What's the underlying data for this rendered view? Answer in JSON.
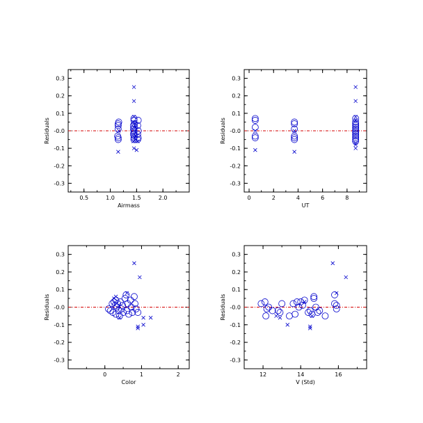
{
  "chart_data": [
    {
      "type": "scatter",
      "xlabel": "Airmass",
      "ylabel": "Residuals",
      "xlim": [
        0.2,
        2.5
      ],
      "ylim": [
        -0.35,
        0.35
      ],
      "xticks": [
        0.5,
        1.0,
        1.5,
        2.0
      ],
      "xticklabels": [
        "0.5",
        "1.0",
        "1.5",
        "2.0"
      ],
      "yticks": [
        -0.3,
        -0.2,
        -0.1,
        0.0,
        0.1,
        0.2,
        0.3
      ],
      "yticklabels": [
        "-0.3",
        "-0.2",
        "-0.1",
        "-0.0",
        "0.1",
        "0.2",
        "0.3"
      ],
      "reference_line": {
        "y": 0.0,
        "color": "#d40000"
      },
      "series": [
        {
          "marker": "circle",
          "color": "#0000cc",
          "points": [
            [
              1.15,
              0.04
            ],
            [
              1.15,
              0.03
            ],
            [
              1.15,
              0.01
            ],
            [
              1.15,
              -0.04
            ],
            [
              1.15,
              -0.05
            ],
            [
              1.16,
              0.05
            ],
            [
              1.14,
              -0.03
            ],
            [
              1.45,
              0.07
            ],
            [
              1.45,
              0.06
            ],
            [
              1.44,
              0.03
            ],
            [
              1.46,
              0.02
            ],
            [
              1.45,
              0.0
            ],
            [
              1.45,
              -0.01
            ],
            [
              1.44,
              -0.02
            ],
            [
              1.46,
              -0.03
            ],
            [
              1.45,
              -0.04
            ],
            [
              1.45,
              -0.05
            ],
            [
              1.44,
              0.01
            ],
            [
              1.46,
              0.04
            ],
            [
              1.53,
              0.06
            ],
            [
              1.52,
              0.03
            ],
            [
              1.53,
              0.0
            ],
            [
              1.52,
              -0.02
            ],
            [
              1.53,
              -0.04
            ],
            [
              1.52,
              -0.05
            ]
          ]
        },
        {
          "marker": "cross",
          "color": "#0000cc",
          "points": [
            [
              1.15,
              -0.12
            ],
            [
              1.16,
              0.0
            ],
            [
              1.45,
              0.25
            ],
            [
              1.45,
              0.17
            ],
            [
              1.45,
              0.08
            ],
            [
              1.44,
              -0.06
            ],
            [
              1.45,
              -0.1
            ],
            [
              1.5,
              -0.11
            ],
            [
              1.46,
              -0.04
            ],
            [
              1.44,
              0.05
            ],
            [
              1.47,
              0.03
            ],
            [
              1.52,
              -0.06
            ]
          ]
        }
      ]
    },
    {
      "type": "scatter",
      "xlabel": "UT",
      "ylabel": "Residuals",
      "xlim": [
        -0.4,
        9.6
      ],
      "ylim": [
        -0.35,
        0.35
      ],
      "xticks": [
        0,
        2,
        4,
        6,
        8
      ],
      "xticklabels": [
        "0",
        "2",
        "4",
        "6",
        "8"
      ],
      "yticks": [
        -0.3,
        -0.2,
        -0.1,
        0.0,
        0.1,
        0.2,
        0.3
      ],
      "yticklabels": [
        "-0.3",
        "-0.2",
        "-0.1",
        "-0.0",
        "0.1",
        "0.2",
        "0.3"
      ],
      "reference_line": {
        "y": 0.0,
        "color": "#d40000"
      },
      "series": [
        {
          "marker": "circle",
          "color": "#0000cc",
          "points": [
            [
              0.5,
              0.07
            ],
            [
              0.5,
              0.06
            ],
            [
              0.5,
              0.02
            ],
            [
              0.5,
              -0.03
            ],
            [
              0.5,
              -0.04
            ],
            [
              3.7,
              0.05
            ],
            [
              3.7,
              0.04
            ],
            [
              3.7,
              0.01
            ],
            [
              3.7,
              -0.03
            ],
            [
              3.7,
              -0.04
            ],
            [
              3.7,
              -0.05
            ],
            [
              8.7,
              0.07
            ],
            [
              8.7,
              0.05
            ],
            [
              8.7,
              0.04
            ],
            [
              8.7,
              0.02
            ],
            [
              8.7,
              0.01
            ],
            [
              8.7,
              0.0
            ],
            [
              8.7,
              -0.01
            ],
            [
              8.7,
              -0.02
            ],
            [
              8.7,
              -0.03
            ],
            [
              8.7,
              -0.04
            ],
            [
              8.7,
              -0.05
            ],
            [
              8.7,
              0.03
            ],
            [
              8.7,
              -0.06
            ]
          ]
        },
        {
          "marker": "cross",
          "color": "#0000cc",
          "points": [
            [
              0.5,
              -0.11
            ],
            [
              0.5,
              0.0
            ],
            [
              3.7,
              -0.12
            ],
            [
              3.7,
              0.0
            ],
            [
              8.7,
              0.25
            ],
            [
              8.7,
              0.17
            ],
            [
              8.7,
              0.08
            ],
            [
              8.7,
              -0.1
            ],
            [
              8.7,
              -0.08
            ],
            [
              8.7,
              0.06
            ],
            [
              8.7,
              -0.07
            ]
          ]
        }
      ]
    },
    {
      "type": "scatter",
      "xlabel": "Color",
      "ylabel": "Residuals",
      "xlim": [
        -1.0,
        2.3
      ],
      "ylim": [
        -0.35,
        0.35
      ],
      "xticks": [
        0,
        1,
        2
      ],
      "xticklabels": [
        "0",
        "1",
        "2"
      ],
      "yticks": [
        -0.3,
        -0.2,
        -0.1,
        0.0,
        0.1,
        0.2,
        0.3
      ],
      "yticklabels": [
        "-0.3",
        "-0.2",
        "-0.1",
        "-0.0",
        "0.1",
        "0.2",
        "0.3"
      ],
      "reference_line": {
        "y": 0.0,
        "color": "#d40000"
      },
      "series": [
        {
          "marker": "circle",
          "color": "#0000cc",
          "points": [
            [
              0.1,
              -0.01
            ],
            [
              0.15,
              -0.02
            ],
            [
              0.2,
              0.02
            ],
            [
              0.22,
              -0.03
            ],
            [
              0.25,
              0.03
            ],
            [
              0.28,
              0.01
            ],
            [
              0.3,
              -0.04
            ],
            [
              0.32,
              0.0
            ],
            [
              0.35,
              0.02
            ],
            [
              0.38,
              -0.02
            ],
            [
              0.4,
              -0.05
            ],
            [
              0.42,
              0.03
            ],
            [
              0.45,
              -0.01
            ],
            [
              0.48,
              0.01
            ],
            [
              0.5,
              -0.03
            ],
            [
              0.55,
              0.05
            ],
            [
              0.58,
              0.07
            ],
            [
              0.6,
              -0.02
            ],
            [
              0.62,
              0.02
            ],
            [
              0.65,
              -0.04
            ],
            [
              0.7,
              0.04
            ],
            [
              0.72,
              0.0
            ],
            [
              0.75,
              -0.03
            ],
            [
              0.8,
              0.06
            ],
            [
              0.82,
              0.02
            ],
            [
              0.85,
              -0.01
            ],
            [
              0.9,
              -0.03
            ],
            [
              0.3,
              0.04
            ]
          ]
        },
        {
          "marker": "cross",
          "color": "#0000cc",
          "points": [
            [
              0.8,
              0.25
            ],
            [
              0.95,
              0.17
            ],
            [
              0.9,
              -0.12
            ],
            [
              0.9,
              -0.11
            ],
            [
              1.05,
              -0.1
            ],
            [
              1.05,
              -0.06
            ],
            [
              1.25,
              -0.06
            ],
            [
              0.25,
              0.05
            ],
            [
              0.3,
              0.06
            ],
            [
              0.6,
              0.08
            ],
            [
              0.4,
              -0.06
            ]
          ]
        }
      ]
    },
    {
      "type": "scatter",
      "xlabel": "V (Std)",
      "ylabel": "Residuals",
      "xlim": [
        11.0,
        17.5
      ],
      "ylim": [
        -0.35,
        0.35
      ],
      "xticks": [
        12,
        14,
        16
      ],
      "xticklabels": [
        "12",
        "14",
        "16"
      ],
      "yticks": [
        -0.3,
        -0.2,
        -0.1,
        0.0,
        0.1,
        0.2,
        0.3
      ],
      "yticklabels": [
        "-0.3",
        "-0.2",
        "-0.1",
        "-0.0",
        "0.1",
        "0.2",
        "0.3"
      ],
      "reference_line": {
        "y": 0.0,
        "color": "#d40000"
      },
      "series": [
        {
          "marker": "circle",
          "color": "#0000cc",
          "points": [
            [
              11.9,
              0.02
            ],
            [
              12.1,
              0.03
            ],
            [
              12.2,
              -0.01
            ],
            [
              12.15,
              -0.05
            ],
            [
              12.3,
              0.0
            ],
            [
              12.5,
              -0.02
            ],
            [
              12.8,
              -0.02
            ],
            [
              12.9,
              -0.03
            ],
            [
              13.0,
              0.02
            ],
            [
              13.4,
              -0.05
            ],
            [
              13.6,
              0.02
            ],
            [
              13.7,
              -0.04
            ],
            [
              13.8,
              0.03
            ],
            [
              13.9,
              0.0
            ],
            [
              14.0,
              0.03
            ],
            [
              14.1,
              0.01
            ],
            [
              14.2,
              0.04
            ],
            [
              14.4,
              -0.03
            ],
            [
              14.5,
              -0.02
            ],
            [
              14.6,
              -0.04
            ],
            [
              14.7,
              0.05
            ],
            [
              14.7,
              0.06
            ],
            [
              14.8,
              0.0
            ],
            [
              14.9,
              -0.03
            ],
            [
              15.0,
              -0.02
            ],
            [
              15.3,
              -0.05
            ],
            [
              15.8,
              0.07
            ],
            [
              15.8,
              0.02
            ],
            [
              15.9,
              -0.01
            ],
            [
              15.9,
              0.01
            ]
          ]
        },
        {
          "marker": "cross",
          "color": "#0000cc",
          "points": [
            [
              15.7,
              0.25
            ],
            [
              16.4,
              0.17
            ],
            [
              14.5,
              -0.12
            ],
            [
              14.5,
              -0.11
            ],
            [
              13.3,
              -0.1
            ],
            [
              12.7,
              -0.05
            ],
            [
              12.9,
              -0.06
            ],
            [
              14.2,
              0.03
            ],
            [
              14.6,
              -0.05
            ],
            [
              15.9,
              0.08
            ]
          ]
        }
      ]
    }
  ]
}
